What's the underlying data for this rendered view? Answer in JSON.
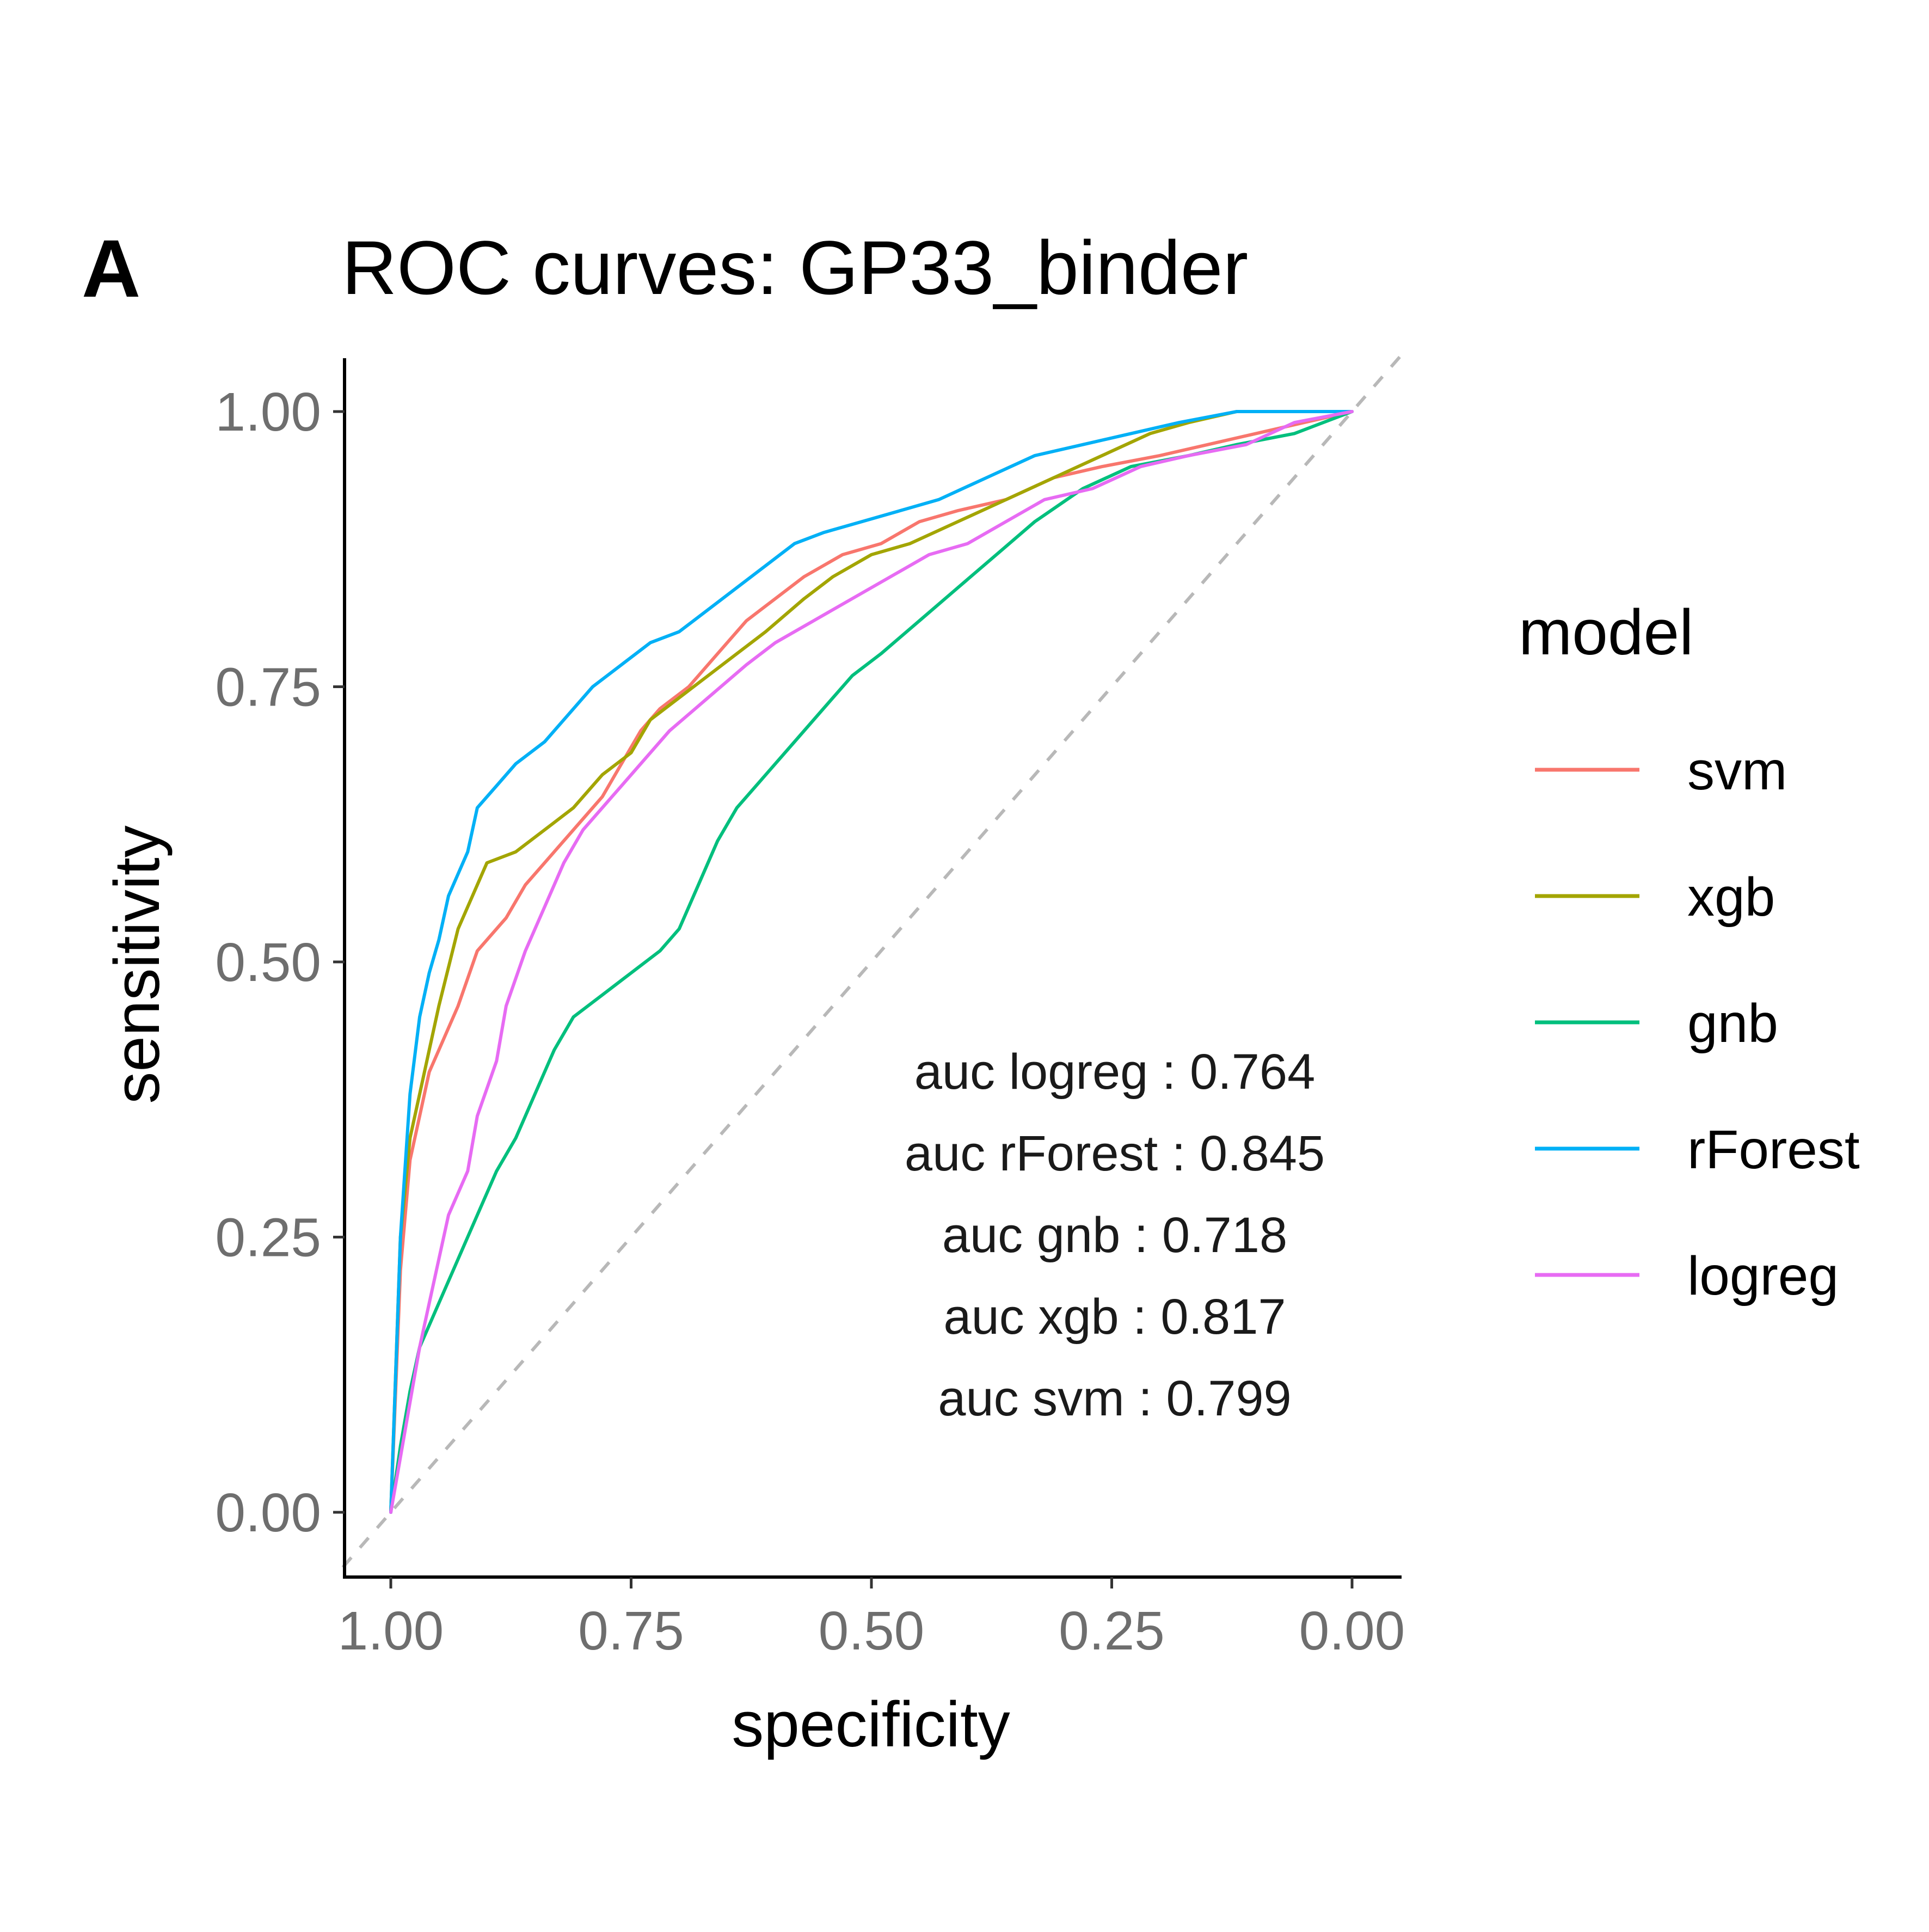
{
  "panel_label": "A",
  "chart_data": {
    "type": "line",
    "title": "ROC curves: GP33_binder",
    "xlabel": "specificity",
    "ylabel": "sensitivity",
    "x_reversed": true,
    "xlim": [
      1.0,
      0.0
    ],
    "ylim": [
      0.0,
      1.0
    ],
    "x_ticks": [
      "1.00",
      "0.75",
      "0.50",
      "0.25",
      "0.00"
    ],
    "x_tick_values": [
      1.0,
      0.75,
      0.5,
      0.25,
      0.0
    ],
    "y_ticks": [
      "0.00",
      "0.25",
      "0.50",
      "0.75",
      "1.00"
    ],
    "y_tick_values": [
      0.0,
      0.25,
      0.5,
      0.75,
      1.0
    ],
    "grid": false,
    "reference_line": "dashed diagonal",
    "legend": {
      "title": "model",
      "position": "right"
    },
    "series": [
      {
        "name": "svm",
        "color": "#F8766D",
        "points": [
          [
            1.0,
            0.0
          ],
          [
            0.99,
            0.22
          ],
          [
            0.98,
            0.32
          ],
          [
            0.97,
            0.36
          ],
          [
            0.96,
            0.4
          ],
          [
            0.95,
            0.42
          ],
          [
            0.93,
            0.46
          ],
          [
            0.91,
            0.51
          ],
          [
            0.88,
            0.54
          ],
          [
            0.86,
            0.57
          ],
          [
            0.83,
            0.6
          ],
          [
            0.8,
            0.63
          ],
          [
            0.78,
            0.65
          ],
          [
            0.76,
            0.68
          ],
          [
            0.74,
            0.71
          ],
          [
            0.72,
            0.73
          ],
          [
            0.69,
            0.75
          ],
          [
            0.66,
            0.78
          ],
          [
            0.63,
            0.81
          ],
          [
            0.6,
            0.83
          ],
          [
            0.57,
            0.85
          ],
          [
            0.53,
            0.87
          ],
          [
            0.49,
            0.88
          ],
          [
            0.45,
            0.9
          ],
          [
            0.41,
            0.91
          ],
          [
            0.36,
            0.92
          ],
          [
            0.31,
            0.94
          ],
          [
            0.26,
            0.95
          ],
          [
            0.2,
            0.96
          ],
          [
            0.15,
            0.97
          ],
          [
            0.1,
            0.98
          ],
          [
            0.05,
            0.99
          ],
          [
            0.0,
            1.0
          ]
        ]
      },
      {
        "name": "xgb",
        "color": "#A3A500",
        "points": [
          [
            1.0,
            0.0
          ],
          [
            0.99,
            0.25
          ],
          [
            0.98,
            0.34
          ],
          [
            0.97,
            0.38
          ],
          [
            0.96,
            0.42
          ],
          [
            0.95,
            0.46
          ],
          [
            0.93,
            0.53
          ],
          [
            0.91,
            0.57
          ],
          [
            0.9,
            0.59
          ],
          [
            0.87,
            0.6
          ],
          [
            0.84,
            0.62
          ],
          [
            0.81,
            0.64
          ],
          [
            0.78,
            0.67
          ],
          [
            0.75,
            0.69
          ],
          [
            0.73,
            0.72
          ],
          [
            0.7,
            0.74
          ],
          [
            0.67,
            0.76
          ],
          [
            0.64,
            0.78
          ],
          [
            0.61,
            0.8
          ],
          [
            0.57,
            0.83
          ],
          [
            0.54,
            0.85
          ],
          [
            0.5,
            0.87
          ],
          [
            0.46,
            0.88
          ],
          [
            0.41,
            0.9
          ],
          [
            0.36,
            0.92
          ],
          [
            0.31,
            0.94
          ],
          [
            0.26,
            0.96
          ],
          [
            0.21,
            0.98
          ],
          [
            0.17,
            0.99
          ],
          [
            0.12,
            1.0
          ],
          [
            0.0,
            1.0
          ]
        ]
      },
      {
        "name": "gnb",
        "color": "#00BF7D",
        "points": [
          [
            1.0,
            0.0
          ],
          [
            0.99,
            0.06
          ],
          [
            0.98,
            0.11
          ],
          [
            0.97,
            0.15
          ],
          [
            0.95,
            0.19
          ],
          [
            0.93,
            0.23
          ],
          [
            0.91,
            0.27
          ],
          [
            0.89,
            0.31
          ],
          [
            0.87,
            0.34
          ],
          [
            0.85,
            0.38
          ],
          [
            0.83,
            0.42
          ],
          [
            0.81,
            0.45
          ],
          [
            0.78,
            0.47
          ],
          [
            0.75,
            0.49
          ],
          [
            0.72,
            0.51
          ],
          [
            0.7,
            0.53
          ],
          [
            0.68,
            0.57
          ],
          [
            0.66,
            0.61
          ],
          [
            0.64,
            0.64
          ],
          [
            0.61,
            0.67
          ],
          [
            0.58,
            0.7
          ],
          [
            0.55,
            0.73
          ],
          [
            0.52,
            0.76
          ],
          [
            0.49,
            0.78
          ],
          [
            0.45,
            0.81
          ],
          [
            0.41,
            0.84
          ],
          [
            0.37,
            0.87
          ],
          [
            0.33,
            0.9
          ],
          [
            0.28,
            0.93
          ],
          [
            0.23,
            0.95
          ],
          [
            0.17,
            0.96
          ],
          [
            0.12,
            0.97
          ],
          [
            0.06,
            0.98
          ],
          [
            0.0,
            1.0
          ]
        ]
      },
      {
        "name": "rForest",
        "color": "#00B0F6",
        "points": [
          [
            1.0,
            0.0
          ],
          [
            0.99,
            0.25
          ],
          [
            0.98,
            0.38
          ],
          [
            0.97,
            0.45
          ],
          [
            0.96,
            0.49
          ],
          [
            0.95,
            0.52
          ],
          [
            0.94,
            0.56
          ],
          [
            0.92,
            0.6
          ],
          [
            0.91,
            0.64
          ],
          [
            0.89,
            0.66
          ],
          [
            0.87,
            0.68
          ],
          [
            0.84,
            0.7
          ],
          [
            0.82,
            0.72
          ],
          [
            0.79,
            0.75
          ],
          [
            0.76,
            0.77
          ],
          [
            0.73,
            0.79
          ],
          [
            0.7,
            0.8
          ],
          [
            0.67,
            0.82
          ],
          [
            0.64,
            0.84
          ],
          [
            0.61,
            0.86
          ],
          [
            0.58,
            0.88
          ],
          [
            0.55,
            0.89
          ],
          [
            0.51,
            0.9
          ],
          [
            0.47,
            0.91
          ],
          [
            0.43,
            0.92
          ],
          [
            0.38,
            0.94
          ],
          [
            0.33,
            0.96
          ],
          [
            0.28,
            0.97
          ],
          [
            0.23,
            0.98
          ],
          [
            0.18,
            0.99
          ],
          [
            0.12,
            1.0
          ],
          [
            0.0,
            1.0
          ]
        ]
      },
      {
        "name": "logreg",
        "color": "#E76BF3",
        "points": [
          [
            1.0,
            0.0
          ],
          [
            0.99,
            0.05
          ],
          [
            0.98,
            0.1
          ],
          [
            0.97,
            0.15
          ],
          [
            0.96,
            0.19
          ],
          [
            0.95,
            0.23
          ],
          [
            0.94,
            0.27
          ],
          [
            0.92,
            0.31
          ],
          [
            0.91,
            0.36
          ],
          [
            0.89,
            0.41
          ],
          [
            0.88,
            0.46
          ],
          [
            0.86,
            0.51
          ],
          [
            0.84,
            0.55
          ],
          [
            0.82,
            0.59
          ],
          [
            0.8,
            0.62
          ],
          [
            0.77,
            0.65
          ],
          [
            0.74,
            0.68
          ],
          [
            0.71,
            0.71
          ],
          [
            0.67,
            0.74
          ],
          [
            0.63,
            0.77
          ],
          [
            0.6,
            0.79
          ],
          [
            0.56,
            0.81
          ],
          [
            0.52,
            0.83
          ],
          [
            0.48,
            0.85
          ],
          [
            0.44,
            0.87
          ],
          [
            0.4,
            0.88
          ],
          [
            0.36,
            0.9
          ],
          [
            0.32,
            0.92
          ],
          [
            0.27,
            0.93
          ],
          [
            0.22,
            0.95
          ],
          [
            0.17,
            0.96
          ],
          [
            0.11,
            0.97
          ],
          [
            0.06,
            0.99
          ],
          [
            0.0,
            1.0
          ]
        ]
      }
    ],
    "annotations": [
      "auc logreg : 0.764",
      "auc rForest : 0.845",
      "auc gnb : 0.718",
      "auc xgb : 0.817",
      "auc svm : 0.799"
    ]
  }
}
